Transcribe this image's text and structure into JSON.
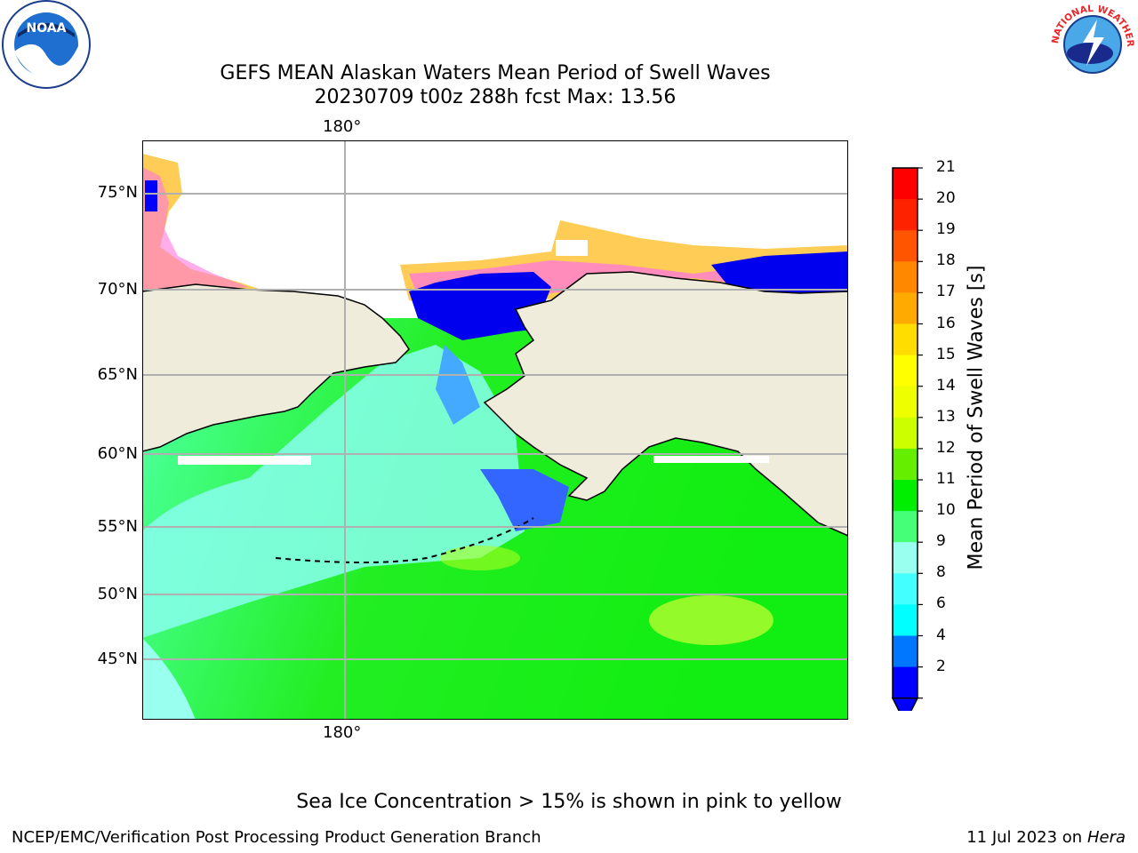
{
  "title": {
    "line1": "GEFS MEAN Alaskan Waters Mean Period of Swell Waves",
    "line2": "20230709 t00z 288h fcst   Max: 13.56"
  },
  "map": {
    "top_lon_label": "180°",
    "bottom_lon_label": "180°",
    "lat_labels": [
      "75°N",
      "70°N",
      "65°N",
      "60°N",
      "55°N",
      "50°N",
      "45°N"
    ],
    "colors": {
      "land": "#efecdc",
      "grid": "#b0b0b0",
      "ice_low": "#ff66cc",
      "ice_high": "#ffcc33",
      "swell_low": "#0000ff",
      "swell_mid": "#33ffff",
      "swell_green": "#00ee00",
      "swell_high": "#ccff00"
    }
  },
  "colorbar": {
    "title": "Mean Period of Swell Waves [s]",
    "ticks": [
      "21",
      "20",
      "19",
      "18",
      "17",
      "16",
      "15",
      "14",
      "13",
      "12",
      "11",
      "10",
      "9",
      "8",
      "6",
      "4",
      "2"
    ],
    "colors": [
      "#ff0000",
      "#ff2200",
      "#ff5500",
      "#ff8800",
      "#ffaa00",
      "#ffdd00",
      "#ffff00",
      "#eeff00",
      "#ccff00",
      "#66ee00",
      "#00ee00",
      "#44ff77",
      "#99ffee",
      "#44ffff",
      "#00ffff",
      "#0077ff",
      "#0000ff"
    ]
  },
  "logos": {
    "noaa_text": "NOAA",
    "nws_text": "NATIONAL WEATHER SERVICE"
  },
  "ice_note": "Sea Ice Concentration > 15% is shown in pink to yellow",
  "footer": {
    "left": "NCEP/EMC/Verification Post Processing Product Generation Branch",
    "right_date": "11 Jul 2023 on ",
    "right_host": "Hera"
  }
}
